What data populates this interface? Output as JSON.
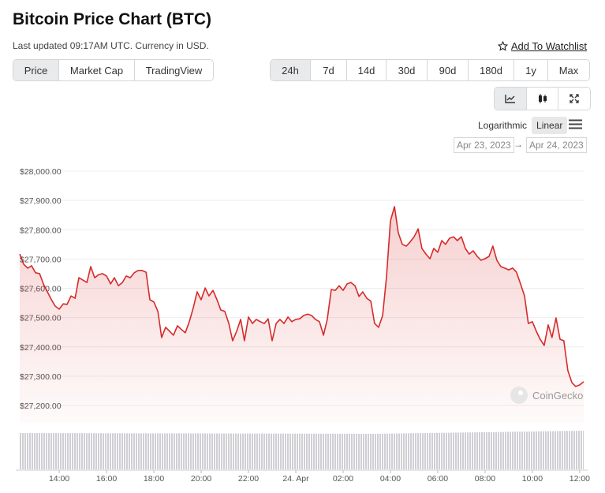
{
  "header": {
    "title": "Bitcoin Price Chart (BTC)",
    "subtitle": "Last updated 09:17AM UTC. Currency in USD.",
    "watchlist": "Add To Watchlist"
  },
  "tabs": {
    "items": [
      "Price",
      "Market Cap",
      "TradingView"
    ],
    "active": 0
  },
  "ranges": {
    "items": [
      "24h",
      "7d",
      "14d",
      "30d",
      "90d",
      "180d",
      "1y",
      "Max"
    ],
    "active": 0
  },
  "scale": {
    "options": [
      "Logarithmic",
      "Linear"
    ],
    "active": 1
  },
  "date_range": {
    "from": "Apr 23, 2023",
    "arrow": "→",
    "to": "Apr 24, 2023"
  },
  "watermark": "CoinGecko",
  "chart_data": {
    "type": "line",
    "color": "#d62a2a",
    "log_scale": false,
    "grid": true,
    "x": [
      12.33,
      12.5,
      12.67,
      12.83,
      13,
      13.17,
      13.33,
      13.5,
      13.67,
      13.83,
      14,
      14.17,
      14.33,
      14.5,
      14.67,
      14.83,
      15,
      15.17,
      15.33,
      15.5,
      15.67,
      15.83,
      16,
      16.17,
      16.33,
      16.5,
      16.67,
      16.83,
      17,
      17.17,
      17.33,
      17.5,
      17.67,
      17.83,
      18,
      18.17,
      18.33,
      18.5,
      18.67,
      18.83,
      19,
      19.17,
      19.33,
      19.5,
      19.67,
      19.83,
      20,
      20.17,
      20.33,
      20.5,
      20.67,
      20.83,
      21,
      21.17,
      21.33,
      21.5,
      21.67,
      21.83,
      22,
      22.17,
      22.33,
      22.5,
      22.67,
      22.83,
      23,
      23.17,
      23.33,
      23.5,
      23.67,
      23.83,
      24,
      24.17,
      24.33,
      24.5,
      24.67,
      24.83,
      25,
      25.17,
      25.33,
      25.5,
      25.67,
      25.83,
      26,
      26.17,
      26.33,
      26.5,
      26.67,
      26.83,
      27,
      27.17,
      27.33,
      27.5,
      27.67,
      27.83,
      28,
      28.17,
      28.33,
      28.5,
      28.67,
      28.83,
      29,
      29.17,
      29.33,
      29.5,
      29.67,
      29.83,
      30,
      30.17,
      30.33,
      30.5,
      30.67,
      30.83,
      31,
      31.17,
      31.33,
      31.5,
      31.67,
      31.83,
      32,
      32.17,
      32.33,
      32.5,
      32.67,
      32.83,
      33,
      33.17,
      33.33,
      33.5,
      33.67,
      33.83,
      34,
      34.17,
      34.33,
      34.5,
      34.67,
      34.83,
      35,
      35.17,
      35.33,
      35.5,
      35.67,
      35.83,
      36,
      36.17
    ],
    "values": [
      27717,
      27682,
      27669,
      27677,
      27653,
      27650,
      27615,
      27588,
      27561,
      27539,
      27529,
      27547,
      27545,
      27574,
      27566,
      27636,
      27628,
      27620,
      27674,
      27636,
      27647,
      27650,
      27642,
      27615,
      27636,
      27609,
      27620,
      27642,
      27636,
      27653,
      27661,
      27661,
      27655,
      27561,
      27553,
      27521,
      27432,
      27467,
      27453,
      27440,
      27472,
      27459,
      27448,
      27486,
      27534,
      27588,
      27561,
      27601,
      27574,
      27593,
      27561,
      27526,
      27521,
      27480,
      27421,
      27453,
      27494,
      27421,
      27502,
      27480,
      27494,
      27486,
      27480,
      27496,
      27421,
      27480,
      27494,
      27480,
      27502,
      27486,
      27494,
      27496,
      27507,
      27512,
      27507,
      27494,
      27486,
      27440,
      27494,
      27596,
      27593,
      27609,
      27593,
      27615,
      27620,
      27609,
      27572,
      27588,
      27566,
      27556,
      27480,
      27467,
      27507,
      27636,
      27830,
      27879,
      27790,
      27750,
      27744,
      27758,
      27776,
      27803,
      27736,
      27717,
      27701,
      27736,
      27723,
      27763,
      27750,
      27771,
      27776,
      27763,
      27776,
      27736,
      27717,
      27728,
      27709,
      27696,
      27701,
      27709,
      27744,
      27696,
      27674,
      27669,
      27663,
      27669,
      27655,
      27615,
      27574,
      27480,
      27486,
      27453,
      27426,
      27405,
      27475,
      27432,
      27499,
      27426,
      27421,
      27319,
      27278,
      27265,
      27270,
      27281
    ],
    "xlim": [
      12.33,
      36.17
    ],
    "xticks": [
      {
        "value": 14,
        "label": "14:00"
      },
      {
        "value": 16,
        "label": "16:00"
      },
      {
        "value": 18,
        "label": "18:00"
      },
      {
        "value": 20,
        "label": "20:00"
      },
      {
        "value": 22,
        "label": "22:00"
      },
      {
        "value": 24,
        "label": "24. Apr"
      },
      {
        "value": 26,
        "label": "02:00"
      },
      {
        "value": 28,
        "label": "04:00"
      },
      {
        "value": 30,
        "label": "06:00"
      },
      {
        "value": 32,
        "label": "08:00"
      },
      {
        "value": 34,
        "label": "10:00"
      },
      {
        "value": 36,
        "label": "12:00"
      }
    ],
    "ylim": [
      27200,
      28000
    ],
    "yticks": [
      {
        "value": 27200,
        "label": "$27,200.00"
      },
      {
        "value": 27300,
        "label": "$27,300.00"
      },
      {
        "value": 27400,
        "label": "$27,400.00"
      },
      {
        "value": 27500,
        "label": "$27,500.00"
      },
      {
        "value": 27600,
        "label": "$27,600.00"
      },
      {
        "value": 27700,
        "label": "$27,700.00"
      },
      {
        "value": 27800,
        "label": "$27,800.00"
      },
      {
        "value": 27900,
        "label": "$27,900.00"
      },
      {
        "value": 28000,
        "label": "$28,000.00"
      }
    ]
  }
}
